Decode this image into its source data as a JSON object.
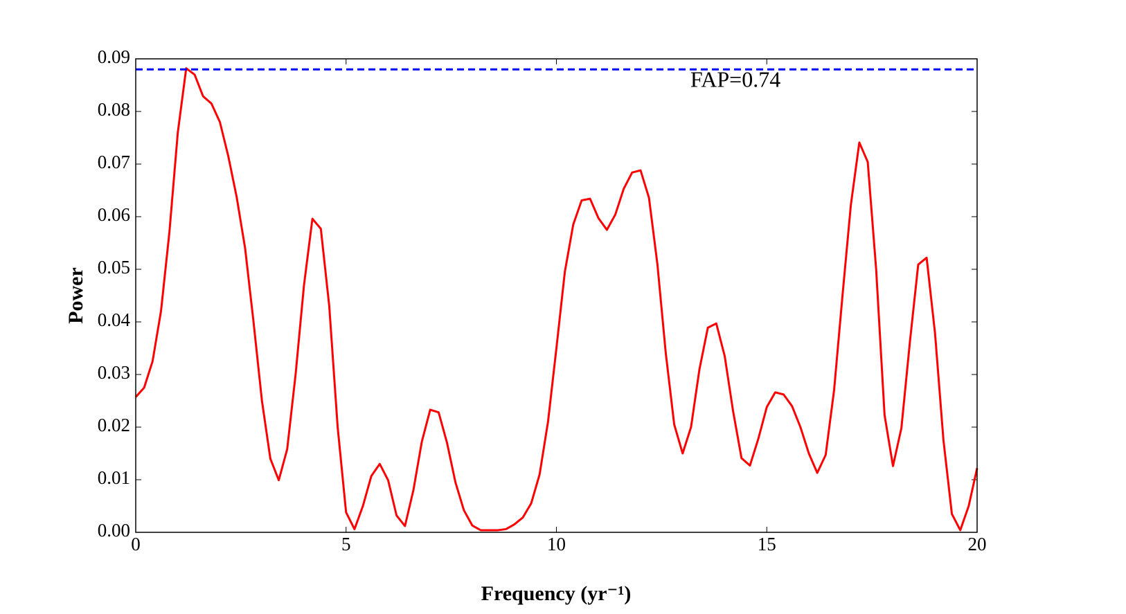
{
  "chart_data": {
    "type": "line",
    "xlabel": "Frequency (yr⁻¹)",
    "ylabel": "Power",
    "x": [
      0,
      0.2,
      0.4,
      0.6,
      0.8,
      1,
      1.2,
      1.4,
      1.6,
      1.8,
      2,
      2.2,
      2.4,
      2.6,
      2.8,
      3,
      3.2,
      3.4,
      3.6,
      3.8,
      4,
      4.2,
      4.4,
      4.6,
      4.8,
      5,
      5.2,
      5.4,
      5.6,
      5.8,
      6,
      6.2,
      6.4,
      6.6,
      6.8,
      7,
      7.2,
      7.4,
      7.6,
      7.8,
      8,
      8.2,
      8.4,
      8.6,
      8.8,
      9,
      9.2,
      9.4,
      9.6,
      9.8,
      10,
      10.2,
      10.4,
      10.6,
      10.8,
      11,
      11.2,
      11.4,
      11.6,
      11.8,
      12,
      12.2,
      12.4,
      12.6,
      12.8,
      13,
      13.2,
      13.4,
      13.6,
      13.8,
      14,
      14.2,
      14.4,
      14.6,
      14.8,
      15,
      15.2,
      15.4,
      15.6,
      15.8,
      16,
      16.2,
      16.4,
      16.6,
      16.8,
      17,
      17.2,
      17.4,
      17.6,
      17.8,
      18,
      18.2,
      18.4,
      18.6,
      18.8,
      19,
      19.2,
      19.4,
      19.6,
      19.8,
      20
    ],
    "series": [
      {
        "color": "#ff0000",
        "values": [
          0.0257,
          0.0275,
          0.0325,
          0.042,
          0.057,
          0.076,
          0.0882,
          0.087,
          0.0829,
          0.0815,
          0.078,
          0.0715,
          0.0637,
          0.054,
          0.04,
          0.025,
          0.014,
          0.0099,
          0.0158,
          0.03,
          0.047,
          0.0596,
          0.0577,
          0.043,
          0.02,
          0.0038,
          0.0006,
          0.005,
          0.0107,
          0.013,
          0.0099,
          0.0032,
          0.0012,
          0.008,
          0.0172,
          0.0233,
          0.0228,
          0.017,
          0.0095,
          0.0042,
          0.0013,
          0.0004,
          0.0004,
          0.0004,
          0.0006,
          0.0015,
          0.0028,
          0.0055,
          0.011,
          0.021,
          0.035,
          0.0495,
          0.0585,
          0.0631,
          0.0634,
          0.0597,
          0.0575,
          0.0604,
          0.0653,
          0.0684,
          0.0688,
          0.0636,
          0.051,
          0.034,
          0.0205,
          0.015,
          0.02,
          0.031,
          0.0389,
          0.0397,
          0.0335,
          0.023,
          0.0141,
          0.0127,
          0.0178,
          0.0238,
          0.0266,
          0.0262,
          0.024,
          0.02,
          0.015,
          0.0113,
          0.0147,
          0.027,
          0.045,
          0.0623,
          0.0741,
          0.0704,
          0.05,
          0.0223,
          0.0126,
          0.0198,
          0.036,
          0.0509,
          0.0522,
          0.0378,
          0.0175,
          0.0035,
          0.0004,
          0.005,
          0.0122
        ]
      }
    ],
    "threshold": {
      "value": 0.088,
      "label": "FAP=0.74",
      "color": "#0000ff"
    },
    "xlim": [
      0,
      20
    ],
    "xticks": [
      0,
      5,
      10,
      15,
      20
    ],
    "ylim": [
      0,
      0.09
    ],
    "yticks": [
      {
        "value": 0,
        "label": "0.00"
      },
      0.01,
      0.02,
      0.03,
      0.04,
      0.05,
      0.06,
      0.07,
      0.08,
      0.09
    ]
  }
}
